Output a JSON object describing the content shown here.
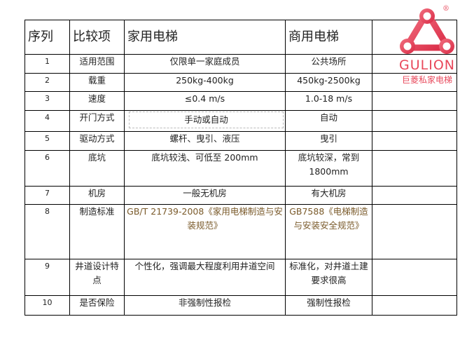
{
  "table": {
    "headers": [
      "序列",
      "比较项",
      "家用电梯",
      "商用电梯",
      ""
    ],
    "rows": [
      {
        "no": "1",
        "item": "适用范围",
        "home": "仅限单一家庭成员",
        "commercial": "公共场所"
      },
      {
        "no": "2",
        "item": "载重",
        "home": "250kg-400kg",
        "commercial": "450kg-2500kg"
      },
      {
        "no": "3",
        "item": "速度",
        "home": "≤0.4 m/s",
        "commercial": "1.0-18 m/s"
      },
      {
        "no": "4",
        "item": "开门方式",
        "home": "手动或自动",
        "commercial": "自动"
      },
      {
        "no": "5",
        "item": "驱动方式",
        "home": "螺杆、曳引、液压",
        "commercial": "曳引"
      },
      {
        "no": "6",
        "item": "底坑",
        "home": "底坑较浅、可低至 200mm",
        "commercial": "底坑较深，常到 1800mm"
      },
      {
        "no": "7",
        "item": "机房",
        "home": "一般无机房",
        "commercial": "有大机房"
      },
      {
        "no": "8",
        "item": "制造标准",
        "home": "GB/T 21739-2008《家用电梯制造与安装规范》",
        "commercial": "GB7588《电梯制造与安装安全规范》"
      },
      {
        "no": "9",
        "item": "井道设计特点",
        "home": "个性化，强调最大程度利用井道空间",
        "commercial": "标准化，对井道土建要求很高"
      },
      {
        "no": "10",
        "item": "是否保险",
        "home": "非强制性报检",
        "commercial": "强制性报检"
      }
    ]
  },
  "logo": {
    "brand": "GULION",
    "subtitle": "巨菱私家电梯",
    "registered": "®",
    "color": "#e8475a"
  }
}
